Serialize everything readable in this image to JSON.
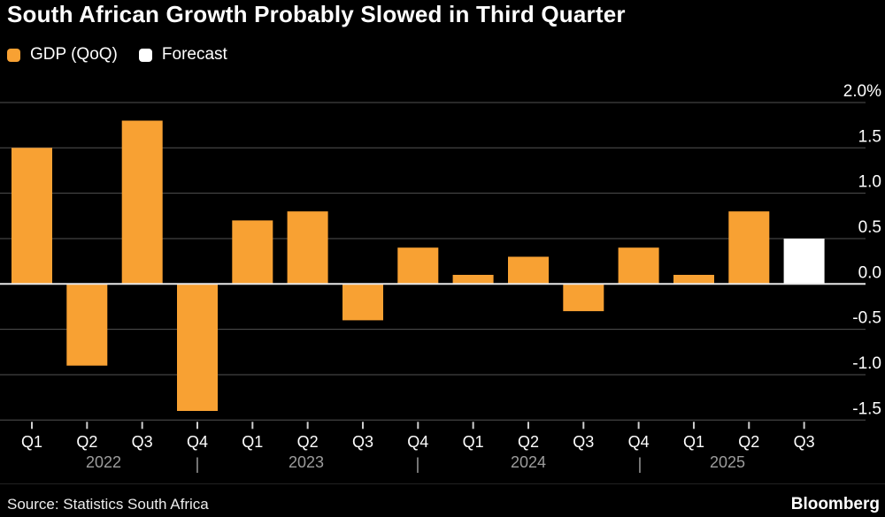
{
  "header": {
    "title": "South African Growth Probably Slowed in Third Quarter"
  },
  "legend": {
    "items": [
      {
        "label": "GDP (QoQ)",
        "color": "#F8A133"
      },
      {
        "label": "Forecast",
        "color": "#FFFFFF"
      }
    ]
  },
  "footer": {
    "source": "Source: Statistics South Africa",
    "brand": "Bloomberg"
  },
  "colors": {
    "background": "#000000",
    "bar": "#F8A133",
    "forecast_bar": "#FFFFFF",
    "gridline": "#525252",
    "zero_line": "#E8E8E8",
    "axis_text": "#FFFFFF",
    "year_text": "#9C9C9C",
    "tick": "#CFCFCF"
  },
  "chart_data": {
    "type": "bar",
    "title": "South African Growth Probably Slowed in Third Quarter",
    "unit": "%",
    "grid": true,
    "legend_position": "top-left",
    "x_labels": [
      "Q1",
      "Q2",
      "Q3",
      "Q4",
      "Q1",
      "Q2",
      "Q3",
      "Q4",
      "Q1",
      "Q2",
      "Q3",
      "Q4",
      "Q1",
      "Q2",
      "Q3"
    ],
    "year_labels": [
      "2022",
      "2023",
      "2024",
      "2025"
    ],
    "year_separator": "|",
    "series": [
      {
        "name": "GDP (QoQ)",
        "color": "#F8A133",
        "values": [
          1.5,
          -0.9,
          1.8,
          -1.4,
          0.7,
          0.8,
          -0.4,
          0.4,
          0.1,
          0.3,
          -0.3,
          0.4,
          0.1,
          0.8,
          null
        ]
      },
      {
        "name": "Forecast",
        "color": "#FFFFFF",
        "values": [
          null,
          null,
          null,
          null,
          null,
          null,
          null,
          null,
          null,
          null,
          null,
          null,
          null,
          null,
          0.5
        ]
      }
    ],
    "y_ticks": [
      2.0,
      1.5,
      1.0,
      0.5,
      0.0,
      -0.5,
      -1.0,
      -1.5
    ],
    "y_tick_labels": [
      "2.0%",
      "1.5",
      "1.0",
      "0.5",
      "0.0",
      "-0.5",
      "-1.0",
      "-1.5"
    ],
    "ylim": [
      -1.75,
      2.1
    ]
  }
}
